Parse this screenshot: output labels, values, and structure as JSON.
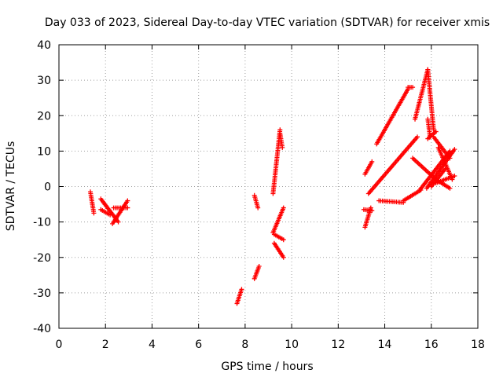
{
  "chart_data": {
    "type": "scatter",
    "title": "Day 033 of 2023, Sidereal Day-to-day VTEC variation (SDTVAR) for receiver xmis",
    "xlabel": "GPS time / hours",
    "ylabel": "SDTVAR / TECUs",
    "xlim": [
      0,
      18
    ],
    "ylim": [
      -40,
      40
    ],
    "xticks": [
      "0",
      "2",
      "4",
      "6",
      "8",
      "10",
      "12",
      "14",
      "16",
      "18"
    ],
    "yticks": [
      "-40",
      "-30",
      "-20",
      "-10",
      "0",
      "10",
      "20",
      "30",
      "40"
    ],
    "grid": true,
    "marker": "plus",
    "color": "#ff0000",
    "segments": [
      {
        "x": [
          1.35,
          1.5
        ],
        "y": [
          -1.5,
          -7.5
        ]
      },
      {
        "x": [
          1.8,
          2.55
        ],
        "y": [
          -3.5,
          -10
        ]
      },
      {
        "x": [
          1.8,
          2.2
        ],
        "y": [
          -6.5,
          -8
        ]
      },
      {
        "x": [
          2.3,
          2.95
        ],
        "y": [
          -10.5,
          -4
        ]
      },
      {
        "x": [
          2.35,
          2.95
        ],
        "y": [
          -6,
          -6
        ]
      },
      {
        "x": [
          7.65,
          7.85
        ],
        "y": [
          -33,
          -29
        ]
      },
      {
        "x": [
          8.4,
          8.6
        ],
        "y": [
          -26,
          -22.5
        ]
      },
      {
        "x": [
          8.4,
          8.55
        ],
        "y": [
          -2.5,
          -6
        ]
      },
      {
        "x": [
          9.2,
          9.5
        ],
        "y": [
          -2,
          16
        ]
      },
      {
        "x": [
          9.5,
          9.6
        ],
        "y": [
          15,
          11
        ]
      },
      {
        "x": [
          9.2,
          9.65
        ],
        "y": [
          -13,
          -6
        ]
      },
      {
        "x": [
          9.25,
          9.65
        ],
        "y": [
          -13.5,
          -15
        ]
      },
      {
        "x": [
          9.25,
          9.65
        ],
        "y": [
          -16,
          -20
        ]
      },
      {
        "x": [
          13.15,
          13.4
        ],
        "y": [
          -11.5,
          -6
        ]
      },
      {
        "x": [
          13.1,
          13.45
        ],
        "y": [
          -6.5,
          -6.8
        ]
      },
      {
        "x": [
          13.15,
          13.45
        ],
        "y": [
          3.5,
          7
        ]
      },
      {
        "x": [
          13.3,
          15.4
        ],
        "y": [
          -2,
          14
        ]
      },
      {
        "x": [
          13.75,
          14.8
        ],
        "y": [
          -4,
          -4.5
        ]
      },
      {
        "x": [
          14.8,
          15.55
        ],
        "y": [
          -4,
          -1
        ]
      },
      {
        "x": [
          13.65,
          15.0
        ],
        "y": [
          12,
          27.5
        ]
      },
      {
        "x": [
          15.0,
          15.2
        ],
        "y": [
          28,
          28
        ]
      },
      {
        "x": [
          15.3,
          15.85
        ],
        "y": [
          19,
          33
        ]
      },
      {
        "x": [
          15.85,
          16.1
        ],
        "y": [
          33,
          16
        ]
      },
      {
        "x": [
          15.85,
          15.95
        ],
        "y": [
          19,
          14
        ]
      },
      {
        "x": [
          15.85,
          16.2
        ],
        "y": [
          13.5,
          15.5
        ]
      },
      {
        "x": [
          15.2,
          16.2
        ],
        "y": [
          8,
          2
        ]
      },
      {
        "x": [
          16.2,
          16.8
        ],
        "y": [
          2,
          -0.5
        ]
      },
      {
        "x": [
          15.5,
          16.8
        ],
        "y": [
          -1,
          10
        ]
      },
      {
        "x": [
          15.8,
          17.0
        ],
        "y": [
          -0.5,
          10.5
        ]
      },
      {
        "x": [
          16.0,
          16.6
        ],
        "y": [
          0,
          5
        ]
      },
      {
        "x": [
          16.3,
          16.9
        ],
        "y": [
          11,
          2
        ]
      },
      {
        "x": [
          16.1,
          16.8
        ],
        "y": [
          14,
          8
        ]
      },
      {
        "x": [
          16.2,
          17.0
        ],
        "y": [
          1,
          3
        ]
      }
    ]
  }
}
